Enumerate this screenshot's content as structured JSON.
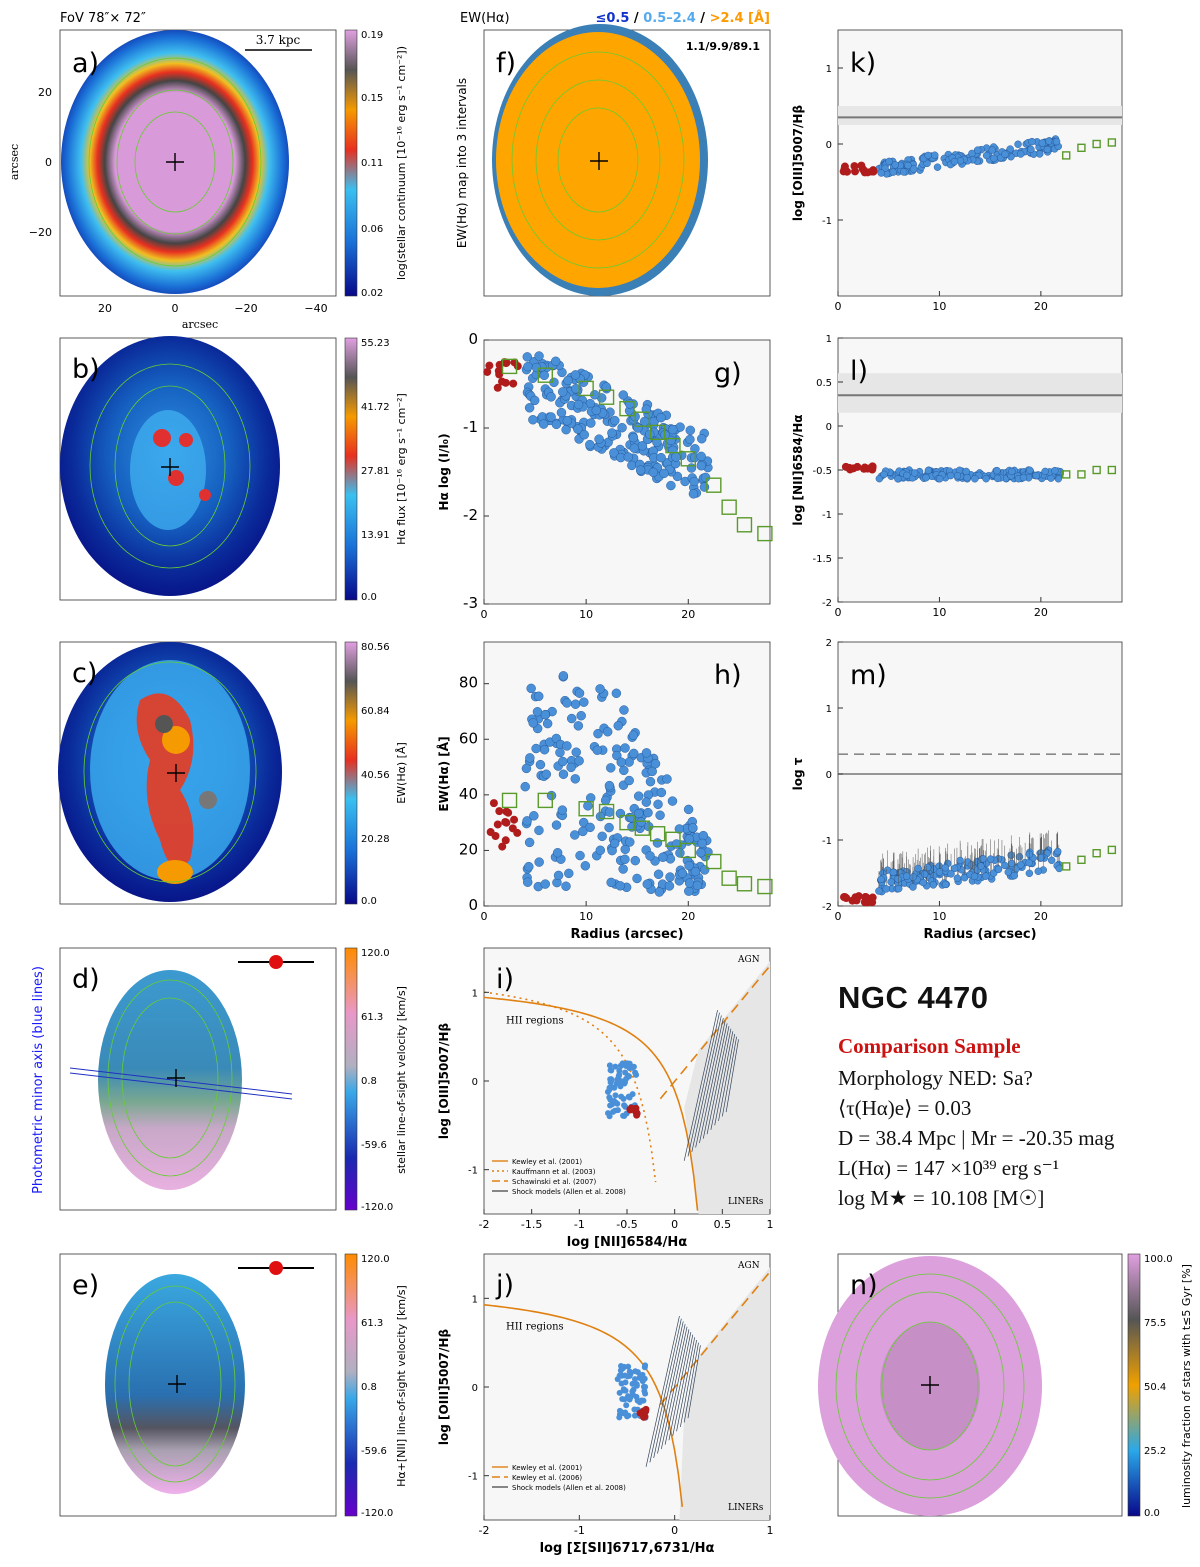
{
  "galaxy": {
    "name": "NGC 4470",
    "sample": "Comparison Sample",
    "lines": [
      "Morphology NED: Sa?",
      "⟨τ(Hα)e⟩ = 0.03",
      "D = 38.4 Mpc | Mr = -20.35 mag",
      "L(Hα) = 147 ×10³⁹ erg s⁻¹",
      "log M★ = 10.108 [M☉]"
    ]
  },
  "header": {
    "fov": "FoV 78″× 72″",
    "ew_title": "EW(Hα)",
    "ew_legend": [
      {
        "text": "≤0.5",
        "color": "#1133cc"
      },
      {
        "text": "0.5–2.4",
        "color": "#55aaee"
      },
      {
        "text": ">2.4 [Å]",
        "color": "#ff9900"
      }
    ]
  },
  "colors": {
    "spaxel": "#4a90d9",
    "nucleus": "#b01c1c",
    "profile": "#5a9a2a",
    "ew_high": "#ffa500",
    "ew_mid": "#3a7fb5",
    "demarcation": "#e08010",
    "shade": "#e6e6e6"
  },
  "maps": {
    "a": {
      "label": "a)",
      "colorbar_label": "log(stellar continuum [10⁻¹⁶ erg s⁻¹ cm⁻²])",
      "ticks": [
        "0.19",
        "0.15",
        "0.11",
        "0.06",
        "0.02"
      ],
      "scale_bar": "3.7 kpc",
      "xlabel": "arcsec",
      "ylabel": "arcsec",
      "xticks": [
        "20",
        "0",
        "−20",
        "−40"
      ],
      "yticks": [
        "20",
        "0",
        "−20"
      ]
    },
    "b": {
      "label": "b)",
      "colorbar_label": "Hα flux [10⁻¹⁶ erg s⁻¹ cm⁻²]",
      "ticks": [
        "55.23",
        "41.72",
        "27.81",
        "13.91",
        "0.0"
      ]
    },
    "c": {
      "label": "c)",
      "colorbar_label": "EW(Hα) [Å]",
      "ticks": [
        "80.56",
        "60.84",
        "40.56",
        "20.28",
        "0.0"
      ]
    },
    "d": {
      "label": "d)",
      "colorbar_label": "stellar line-of-sight velocity [km/s]",
      "ticks": [
        "120.0",
        "61.3",
        "0.8",
        "-59.6",
        "-120.0"
      ],
      "side_label": "Photometric minor axis (blue lines)"
    },
    "e": {
      "label": "e)",
      "colorbar_label": "Hα+[NII] line-of-sight velocity [km/s]",
      "ticks": [
        "120.0",
        "61.3",
        "0.8",
        "-59.6",
        "-120.0"
      ]
    },
    "f": {
      "label": "f)",
      "ylabel": "EW(Hα) map into 3 intervals",
      "fractions": "1.1/9.9/89.1"
    },
    "n": {
      "label": "n)",
      "colorbar_label": "luminosity fraction of stars with t≤5 Gyr [%]",
      "ticks": [
        "100.0",
        "75.5",
        "50.4",
        "25.2",
        "0.0"
      ]
    }
  },
  "chart_data": [
    {
      "id": "g",
      "type": "scatter",
      "label": "g)",
      "xlabel": "",
      "ylabel": "Hα log (I/I₀)",
      "xlim": [
        0,
        28
      ],
      "ylim": [
        -3,
        0
      ],
      "xticks": [
        0,
        10,
        20
      ],
      "yticks": [
        0,
        -1,
        -2,
        -3
      ],
      "profile": {
        "x": [
          2.5,
          6,
          10,
          12,
          14,
          15.5,
          17,
          18.5,
          20,
          22.5,
          24,
          25.5,
          27.5
        ],
        "y": [
          -0.3,
          -0.4,
          -0.55,
          -0.65,
          -0.78,
          -0.9,
          -1.05,
          -1.2,
          -1.35,
          -1.65,
          -1.9,
          -2.1,
          -2.2
        ]
      }
    },
    {
      "id": "h",
      "type": "scatter",
      "label": "h)",
      "xlabel": "Radius (arcsec)",
      "ylabel": "EW(Hα) [Å]",
      "xlim": [
        0,
        28
      ],
      "ylim": [
        0,
        95
      ],
      "xticks": [
        0,
        10,
        20
      ],
      "yticks": [
        0,
        20,
        40,
        60,
        80
      ],
      "profile": {
        "x": [
          2.5,
          6,
          10,
          12,
          14,
          15.5,
          17,
          18.5,
          20,
          22.5,
          24,
          25.5,
          27.5
        ],
        "y": [
          38,
          38,
          35,
          34,
          30,
          28,
          26,
          24,
          20,
          16,
          10,
          8,
          7
        ]
      }
    },
    {
      "id": "k",
      "type": "scatter",
      "label": "k)",
      "xlabel": "",
      "ylabel": "log [OIII]5007/Hβ",
      "xlim": [
        0,
        28
      ],
      "ylim": [
        -2,
        1.5
      ],
      "xticks": [
        0,
        10,
        20
      ],
      "yticks": [
        1,
        0,
        -1
      ],
      "reference": 0.35,
      "band": [
        0.25,
        0.5
      ],
      "profile": {
        "x": [
          22.5,
          24,
          25.5,
          27
        ],
        "y": [
          -0.15,
          -0.05,
          0.0,
          0.02
        ]
      }
    },
    {
      "id": "l",
      "type": "scatter",
      "label": "l)",
      "xlabel": "",
      "ylabel": "log [NII]6584/Hα",
      "xlim": [
        0,
        28
      ],
      "ylim": [
        -2,
        1
      ],
      "xticks": [
        0,
        10,
        20
      ],
      "yticks": [
        1,
        0.5,
        0,
        -0.5,
        -1,
        -1.5,
        -2
      ],
      "ytick_labels": [
        "1",
        "0.5",
        "0",
        "-0.5",
        "-1",
        "-1.5",
        "-2"
      ],
      "reference": 0.35,
      "band": [
        0.15,
        0.6
      ],
      "profile": {
        "x": [
          22.5,
          24,
          25.5,
          27
        ],
        "y": [
          -0.55,
          -0.55,
          -0.5,
          -0.5
        ]
      }
    },
    {
      "id": "m",
      "type": "scatter",
      "label": "m)",
      "xlabel": "Radius (arcsec)",
      "ylabel": "log τ",
      "xlim": [
        0,
        28
      ],
      "ylim": [
        -2,
        2
      ],
      "xticks": [
        0,
        10,
        20
      ],
      "yticks": [
        2,
        1,
        0,
        -1,
        -2
      ],
      "reference_solid": 0.0,
      "reference_dashed": 0.3,
      "profile": {
        "x": [
          22.5,
          24,
          25.5,
          27
        ],
        "y": [
          -1.4,
          -1.3,
          -1.2,
          -1.15
        ]
      }
    },
    {
      "id": "i",
      "type": "scatter",
      "label": "i)",
      "xlabel": "log [NII]6584/Hα",
      "ylabel": "log [OIII]5007/Hβ",
      "xlim": [
        -2,
        1
      ],
      "ylim": [
        -1.5,
        1.5
      ],
      "xticks": [
        -2,
        -1.5,
        -1,
        -0.5,
        0,
        0.5,
        1
      ],
      "yticks": [
        1,
        0,
        -1
      ],
      "region_labels": [
        "HII regions",
        "AGN",
        "LINERs"
      ],
      "legend": [
        "Kewley et al. (2001)",
        "Kauffmann et al. (2003)",
        "Schawinski et al. (2007)",
        "Shock models (Allen et al. 2008)"
      ]
    },
    {
      "id": "j",
      "type": "scatter",
      "label": "j)",
      "xlabel": "log [Σ[SII]6717,6731/Hα",
      "ylabel": "log [OIII]5007/Hβ",
      "xlim": [
        -2,
        1
      ],
      "ylim": [
        -1.5,
        1.5
      ],
      "xticks": [
        -2,
        -1,
        0,
        1
      ],
      "yticks": [
        1,
        0,
        -1
      ],
      "region_labels": [
        "HII regions",
        "AGN",
        "LINERs"
      ],
      "legend": [
        "Kewley et al. (2001)",
        "Kewley et al. (2006)",
        "Shock models (Allen et al. 2008)"
      ]
    }
  ]
}
